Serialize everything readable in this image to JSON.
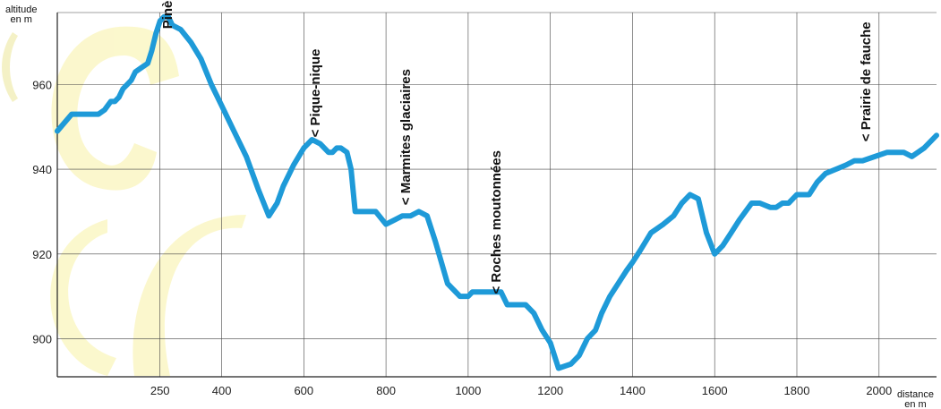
{
  "chart_data": {
    "type": "line",
    "ylabel_line1": "altitude",
    "ylabel_line2": "en m",
    "xlabel_line1": "distance",
    "xlabel_line2": "en m",
    "xlim": [
      0,
      2140
    ],
    "ylim": [
      891,
      977
    ],
    "x_ticks": [
      250,
      400,
      600,
      800,
      1000,
      1200,
      1400,
      1600,
      1800,
      2000
    ],
    "y_ticks": [
      900,
      920,
      940,
      960
    ],
    "grid": true,
    "line_color": "#1e9ad8",
    "series": [
      {
        "x": [
          0,
          35,
          65,
          70,
          80,
          100,
          115,
          130,
          140,
          150,
          160,
          170,
          180,
          190,
          205,
          220,
          230,
          240,
          250,
          260,
          270,
          280,
          300,
          325,
          350,
          375,
          400,
          430,
          460,
          490,
          515,
          535,
          550,
          575,
          600,
          620,
          640,
          660,
          670,
          680,
          690,
          705,
          715,
          725,
          745,
          775,
          800,
          820,
          840,
          860,
          880,
          900,
          920,
          950,
          980,
          1000,
          1010,
          1030,
          1060,
          1080,
          1095,
          1120,
          1140,
          1160,
          1180,
          1200,
          1220,
          1250,
          1270,
          1290,
          1300,
          1310,
          1325,
          1345,
          1365,
          1385,
          1400,
          1420,
          1445,
          1475,
          1500,
          1520,
          1540,
          1560,
          1580,
          1600,
          1620,
          1640,
          1660,
          1690,
          1710,
          1735,
          1750,
          1765,
          1780,
          1800,
          1815,
          1830,
          1850,
          1870,
          1895,
          1920,
          1940,
          1960,
          1990,
          2020,
          2040,
          2060,
          2080,
          2110,
          2140
        ],
        "y": [
          949,
          953,
          953,
          953,
          953,
          953,
          954,
          956,
          956,
          957,
          959,
          960,
          961,
          963,
          964,
          965,
          968,
          972,
          975,
          976,
          976,
          974,
          973,
          970,
          966,
          960,
          955,
          949,
          943,
          935,
          929,
          932,
          936,
          941,
          945,
          947,
          946,
          944,
          944,
          945,
          945,
          944,
          940,
          930,
          930,
          930,
          927,
          928,
          929,
          929,
          930,
          929,
          923,
          913,
          910,
          910,
          911,
          911,
          911,
          911,
          908,
          908,
          908,
          906,
          902,
          899,
          893,
          894,
          896,
          900,
          901,
          902,
          906,
          910,
          913,
          916,
          918,
          921,
          925,
          927,
          929,
          932,
          934,
          933,
          925,
          920,
          922,
          925,
          928,
          932,
          932,
          931,
          931,
          932,
          932,
          934,
          934,
          934,
          937,
          939,
          940,
          941,
          942,
          942,
          943,
          944,
          944,
          944,
          943,
          945,
          948
        ]
      }
    ],
    "annotations": [
      {
        "text": "Pinède >",
        "x": 320
      },
      {
        "text": "< Pique-nique",
        "x": 680
      },
      {
        "text": "< Marmites glaciaires",
        "x": 900
      },
      {
        "text": "< Roches moutonnées",
        "x": 1120
      },
      {
        "text": "< Prairie de fauche",
        "x": 2020
      }
    ]
  }
}
